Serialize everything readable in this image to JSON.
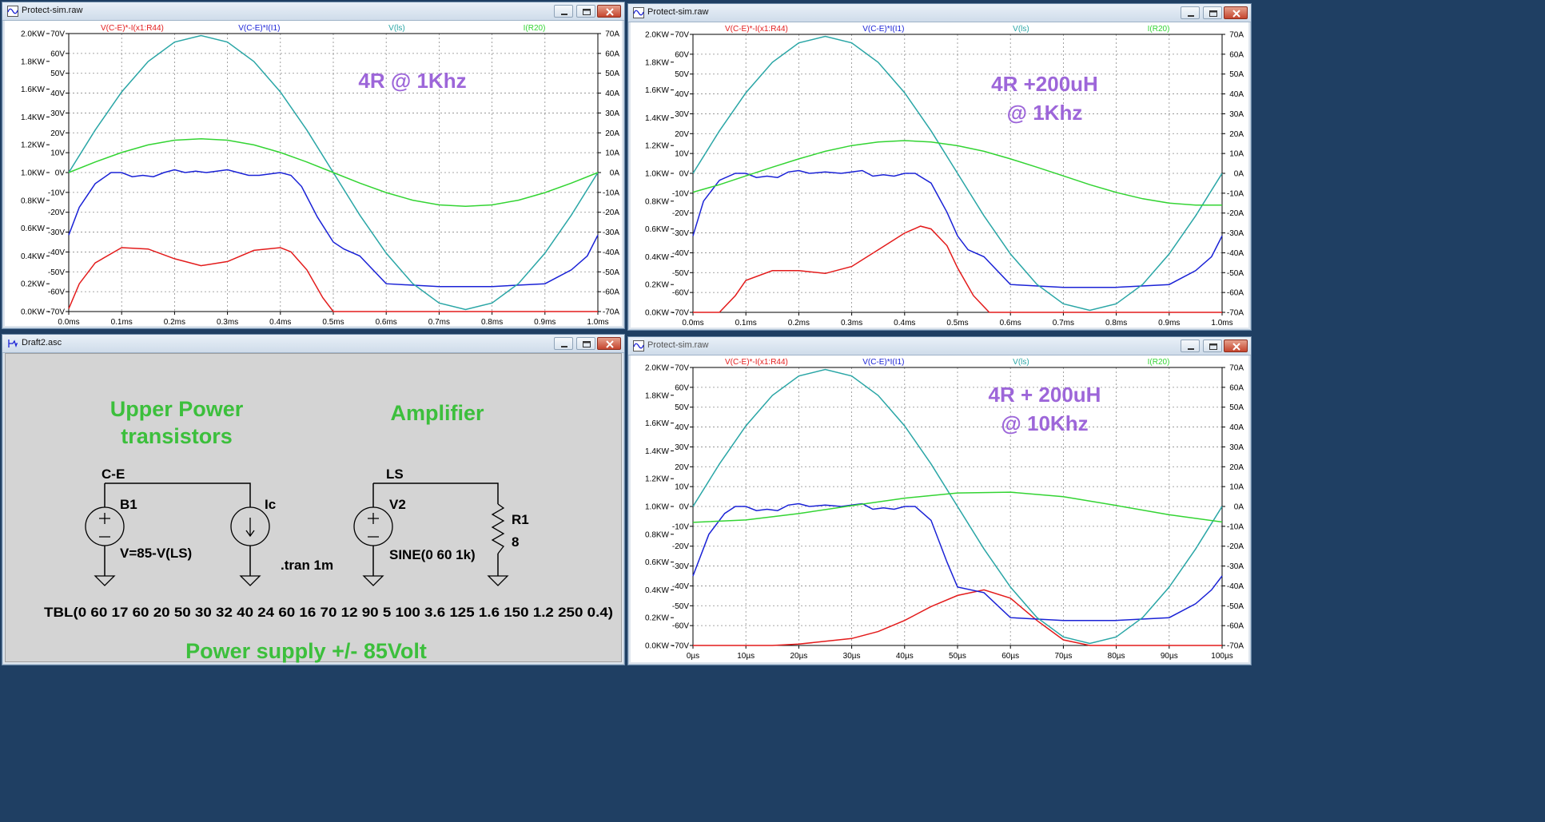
{
  "colors": {
    "red": "#e31b1b",
    "blue": "#1a22d6",
    "teal": "#2aa6a6",
    "green": "#33d433",
    "annotation": "#9d66d9",
    "schematic_green": "#3cbf3c",
    "schematic_bg": "#d4d4d4"
  },
  "icons": {
    "plot_window": "waveform-icon",
    "schematic_window": "schematic-icon",
    "minimize": "minimize-icon",
    "maximize": "maximize-icon",
    "close": "close-icon"
  },
  "plots": [
    {
      "window_title": "Protect-sim.raw",
      "annotation": [
        "4R @ 1Khz"
      ],
      "trace_labels": [
        "V(C-E)*-I(x1:R44)",
        "V(C-E)*I(I1)",
        "V(ls)",
        "I(R20)"
      ],
      "left_ticks": [
        "2.0KW",
        "1.8KW",
        "1.6KW",
        "1.4KW",
        "1.2KW",
        "1.0KW",
        "0.8KW",
        "0.6KW",
        "0.4KW",
        "0.2KW",
        "0.0KW"
      ],
      "mid_ticks": [
        "70V",
        "60V",
        "50V",
        "40V",
        "30V",
        "20V",
        "10V",
        "0V",
        "-10V",
        "-20V",
        "-30V",
        "-40V",
        "-50V",
        "-60V",
        "-70V"
      ],
      "right_ticks": [
        "70A",
        "60A",
        "50A",
        "40A",
        "30A",
        "20A",
        "10A",
        "0A",
        "-10A",
        "-20A",
        "-30A",
        "-40A",
        "-50A",
        "-60A",
        "-70A"
      ],
      "x_ticks": [
        "0.0ms",
        "0.1ms",
        "0.2ms",
        "0.3ms",
        "0.4ms",
        "0.5ms",
        "0.6ms",
        "0.7ms",
        "0.8ms",
        "0.9ms",
        "1.0ms"
      ]
    },
    {
      "window_title": "Protect-sim.raw",
      "annotation": [
        "4R +200uH",
        "@ 1Khz"
      ],
      "trace_labels": [
        "V(C-E)*-I(x1:R44)",
        "V(C-E)*I(I1)",
        "V(ls)",
        "I(R20)"
      ],
      "left_ticks": [
        "2.0KW",
        "1.8KW",
        "1.6KW",
        "1.4KW",
        "1.2KW",
        "1.0KW",
        "0.8KW",
        "0.6KW",
        "0.4KW",
        "0.2KW",
        "0.0KW"
      ],
      "mid_ticks": [
        "70V",
        "60V",
        "50V",
        "40V",
        "30V",
        "20V",
        "10V",
        "0V",
        "-10V",
        "-20V",
        "-30V",
        "-40V",
        "-50V",
        "-60V",
        "-70V"
      ],
      "right_ticks": [
        "70A",
        "60A",
        "50A",
        "40A",
        "30A",
        "20A",
        "10A",
        "0A",
        "-10A",
        "-20A",
        "-30A",
        "-40A",
        "-50A",
        "-60A",
        "-70A"
      ],
      "x_ticks": [
        "0.0ms",
        "0.1ms",
        "0.2ms",
        "0.3ms",
        "0.4ms",
        "0.5ms",
        "0.6ms",
        "0.7ms",
        "0.8ms",
        "0.9ms",
        "1.0ms"
      ]
    },
    {
      "window_title": "Protect-sim.raw",
      "annotation": [
        "4R + 200uH",
        "@ 10Khz"
      ],
      "trace_labels": [
        "V(C-E)*-I(x1:R44)",
        "V(C-E)*I(I1)",
        "V(ls)",
        "I(R20)"
      ],
      "left_ticks": [
        "2.0KW",
        "1.8KW",
        "1.6KW",
        "1.4KW",
        "1.2KW",
        "1.0KW",
        "0.8KW",
        "0.6KW",
        "0.4KW",
        "0.2KW",
        "0.0KW"
      ],
      "mid_ticks": [
        "70V",
        "60V",
        "50V",
        "40V",
        "30V",
        "20V",
        "10V",
        "0V",
        "-10V",
        "-20V",
        "-30V",
        "-40V",
        "-50V",
        "-60V",
        "-70V"
      ],
      "right_ticks": [
        "70A",
        "60A",
        "50A",
        "40A",
        "30A",
        "20A",
        "10A",
        "0A",
        "-10A",
        "-20A",
        "-30A",
        "-40A",
        "-50A",
        "-60A",
        "-70A"
      ],
      "x_ticks": [
        "0µs",
        "10µs",
        "20µs",
        "30µs",
        "40µs",
        "50µs",
        "60µs",
        "70µs",
        "80µs",
        "90µs",
        "100µs"
      ]
    }
  ],
  "schematic": {
    "window_title": "Draft2.asc",
    "heading_upper": [
      "Upper Power",
      "transistors"
    ],
    "heading_amp": "Amplifier",
    "net_ce": "C-E",
    "net_ls": "LS",
    "b1_name": "B1",
    "b1_value": "V=85-V(LS)",
    "ic_name": "Ic",
    "tran": ".tran 1m",
    "v2_name": "V2",
    "v2_value": "SINE(0 60 1k)",
    "r1_name": "R1",
    "r1_value": "8",
    "tbl": "TBL(0 60 17 60 20 50 30 32 40 24 60 16 70 12 90 5 100 3.6 125 1.6 150 1.2 250 0.4)",
    "footer": "Power supply +/- 85Volt"
  },
  "chart_data": [
    {
      "type": "line",
      "x_unit": "ms",
      "xlim": [
        0,
        1
      ],
      "axes": {
        "power_kw": [
          0,
          2
        ],
        "voltage_v": [
          -70,
          70
        ],
        "current_a": [
          -70,
          70
        ]
      },
      "grid": true,
      "series": [
        {
          "name": "V(C-E)*-I(x1:R44)",
          "axis": "power_kw",
          "color": "red",
          "x": [
            0,
            0.02,
            0.05,
            0.1,
            0.15,
            0.2,
            0.25,
            0.3,
            0.35,
            0.4,
            0.42,
            0.45,
            0.48,
            0.5,
            0.52,
            0.6,
            0.7,
            0.8,
            0.9,
            1.0
          ],
          "y": [
            0.02,
            0.2,
            0.35,
            0.46,
            0.45,
            0.38,
            0.33,
            0.36,
            0.44,
            0.46,
            0.43,
            0.3,
            0.1,
            0.0,
            0.0,
            0.0,
            0.0,
            0.0,
            0.0,
            0.0
          ]
        },
        {
          "name": "V(C-E)*I(I1)",
          "axis": "power_kw",
          "color": "blue",
          "x": [
            0,
            0.02,
            0.05,
            0.08,
            0.1,
            0.12,
            0.14,
            0.16,
            0.18,
            0.2,
            0.22,
            0.24,
            0.26,
            0.28,
            0.3,
            0.32,
            0.34,
            0.36,
            0.38,
            0.4,
            0.42,
            0.44,
            0.47,
            0.5,
            0.52,
            0.55,
            0.6,
            0.7,
            0.8,
            0.9,
            0.95,
            0.98,
            1.0
          ],
          "y": [
            0.55,
            0.75,
            0.92,
            1.0,
            1.0,
            0.97,
            0.98,
            0.97,
            1.0,
            1.02,
            1.0,
            1.01,
            1.0,
            1.01,
            1.02,
            1.0,
            0.98,
            0.98,
            0.99,
            1.0,
            0.98,
            0.9,
            0.68,
            0.5,
            0.45,
            0.4,
            0.2,
            0.18,
            0.18,
            0.2,
            0.3,
            0.4,
            0.55
          ]
        },
        {
          "name": "V(ls)",
          "axis": "voltage_v",
          "color": "teal",
          "x": [
            0,
            0.05,
            0.1,
            0.15,
            0.2,
            0.25,
            0.3,
            0.35,
            0.4,
            0.45,
            0.5,
            0.55,
            0.6,
            0.65,
            0.7,
            0.75,
            0.8,
            0.85,
            0.9,
            0.95,
            1.0
          ],
          "y": [
            0,
            21.4,
            40.6,
            55.9,
            65.7,
            69,
            65.7,
            55.9,
            40.6,
            21.4,
            0,
            -21.4,
            -40.6,
            -55.9,
            -65.7,
            -69,
            -65.7,
            -55.9,
            -40.6,
            -21.4,
            0
          ]
        },
        {
          "name": "I(R20)",
          "axis": "current_a",
          "color": "green",
          "x": [
            0,
            0.05,
            0.1,
            0.15,
            0.2,
            0.25,
            0.3,
            0.35,
            0.4,
            0.45,
            0.5,
            0.55,
            0.6,
            0.65,
            0.7,
            0.75,
            0.8,
            0.85,
            0.9,
            0.95,
            1.0
          ],
          "y": [
            0,
            5.3,
            10.1,
            13.9,
            16.3,
            17,
            16.3,
            13.9,
            10.1,
            5.3,
            0,
            -5.3,
            -10.1,
            -13.9,
            -16.3,
            -17,
            -16.3,
            -13.9,
            -10.1,
            -5.3,
            0
          ]
        }
      ]
    },
    {
      "type": "line",
      "x_unit": "ms",
      "xlim": [
        0,
        1
      ],
      "axes": {
        "power_kw": [
          0,
          2
        ],
        "voltage_v": [
          -70,
          70
        ],
        "current_a": [
          -70,
          70
        ]
      },
      "grid": true,
      "series": [
        {
          "name": "V(C-E)*-I(x1:R44)",
          "axis": "power_kw",
          "color": "red",
          "x": [
            0,
            0.05,
            0.08,
            0.1,
            0.15,
            0.2,
            0.25,
            0.3,
            0.35,
            0.4,
            0.43,
            0.45,
            0.48,
            0.5,
            0.53,
            0.56,
            0.6,
            0.8,
            1.0
          ],
          "y": [
            0,
            0.0,
            0.12,
            0.23,
            0.3,
            0.3,
            0.28,
            0.33,
            0.45,
            0.57,
            0.62,
            0.6,
            0.48,
            0.32,
            0.12,
            0.0,
            0.0,
            0.0,
            0.0
          ]
        },
        {
          "name": "V(C-E)*I(I1)",
          "axis": "power_kw",
          "color": "blue",
          "x": [
            0,
            0.02,
            0.05,
            0.08,
            0.1,
            0.12,
            0.14,
            0.16,
            0.18,
            0.2,
            0.22,
            0.25,
            0.28,
            0.3,
            0.32,
            0.34,
            0.36,
            0.38,
            0.4,
            0.42,
            0.45,
            0.48,
            0.5,
            0.52,
            0.55,
            0.6,
            0.7,
            0.8,
            0.9,
            0.95,
            0.98,
            1.0
          ],
          "y": [
            0.55,
            0.8,
            0.95,
            1.0,
            1.0,
            0.97,
            0.98,
            0.97,
            1.01,
            1.02,
            1.0,
            1.01,
            1.0,
            1.01,
            1.02,
            0.98,
            0.99,
            0.98,
            1.0,
            1.0,
            0.93,
            0.72,
            0.55,
            0.45,
            0.4,
            0.2,
            0.18,
            0.18,
            0.2,
            0.3,
            0.4,
            0.55
          ]
        },
        {
          "name": "V(ls)",
          "axis": "voltage_v",
          "color": "teal",
          "x": [
            0,
            0.05,
            0.1,
            0.15,
            0.2,
            0.25,
            0.3,
            0.35,
            0.4,
            0.45,
            0.5,
            0.55,
            0.6,
            0.65,
            0.7,
            0.75,
            0.8,
            0.85,
            0.9,
            0.95,
            1.0
          ],
          "y": [
            0,
            21.4,
            40.6,
            55.9,
            65.7,
            69,
            65.7,
            55.9,
            40.6,
            21.4,
            0,
            -21.4,
            -40.6,
            -55.9,
            -65.7,
            -69,
            -65.7,
            -55.9,
            -40.6,
            -21.4,
            0
          ]
        },
        {
          "name": "I(R20)",
          "axis": "current_a",
          "color": "green",
          "x": [
            0,
            0.05,
            0.1,
            0.15,
            0.2,
            0.25,
            0.3,
            0.35,
            0.4,
            0.45,
            0.5,
            0.55,
            0.6,
            0.65,
            0.7,
            0.75,
            0.8,
            0.85,
            0.9,
            0.95,
            1.0
          ],
          "y": [
            -9.5,
            -5.7,
            -1.3,
            3.1,
            7.3,
            11.1,
            14.0,
            15.8,
            16.5,
            15.8,
            13.9,
            11.1,
            7.3,
            3.1,
            -1.3,
            -5.7,
            -9.6,
            -12.8,
            -15.0,
            -16.0,
            -16.0
          ]
        }
      ]
    },
    {
      "type": "line",
      "x_unit": "µs",
      "xlim": [
        0,
        100
      ],
      "axes": {
        "power_kw": [
          0,
          2
        ],
        "voltage_v": [
          -70,
          70
        ],
        "current_a": [
          -70,
          70
        ]
      },
      "grid": true,
      "series": [
        {
          "name": "V(C-E)*-I(x1:R44)",
          "axis": "power_kw",
          "color": "red",
          "x": [
            0,
            10,
            15,
            20,
            25,
            30,
            35,
            40,
            45,
            50,
            55,
            60,
            65,
            70,
            75,
            80,
            90,
            100
          ],
          "y": [
            0,
            0,
            0,
            0.01,
            0.03,
            0.05,
            0.1,
            0.18,
            0.28,
            0.36,
            0.4,
            0.34,
            0.18,
            0.04,
            0.0,
            0.0,
            0.0,
            0.0
          ]
        },
        {
          "name": "V(C-E)*I(I1)",
          "axis": "power_kw",
          "color": "blue",
          "x": [
            0,
            3,
            6,
            8,
            10,
            12,
            14,
            16,
            18,
            20,
            22,
            25,
            28,
            30,
            32,
            34,
            36,
            38,
            40,
            42,
            45,
            48,
            50,
            55,
            60,
            70,
            80,
            90,
            95,
            98,
            100
          ],
          "y": [
            0.5,
            0.8,
            0.95,
            1.0,
            1.0,
            0.97,
            0.98,
            0.97,
            1.01,
            1.02,
            1.0,
            1.01,
            1.0,
            1.01,
            1.02,
            0.98,
            0.99,
            0.98,
            1.0,
            1.0,
            0.9,
            0.6,
            0.42,
            0.38,
            0.2,
            0.18,
            0.18,
            0.2,
            0.3,
            0.4,
            0.5
          ]
        },
        {
          "name": "V(ls)",
          "axis": "voltage_v",
          "color": "teal",
          "x": [
            0,
            5,
            10,
            15,
            20,
            25,
            30,
            35,
            40,
            45,
            50,
            55,
            60,
            65,
            70,
            75,
            80,
            85,
            90,
            95,
            100
          ],
          "y": [
            0,
            21.4,
            40.6,
            55.9,
            65.7,
            69,
            65.7,
            55.9,
            40.6,
            21.4,
            0,
            -21.4,
            -40.6,
            -55.9,
            -65.7,
            -69,
            -65.7,
            -55.9,
            -40.6,
            -21.4,
            0
          ]
        },
        {
          "name": "I(R20)",
          "axis": "current_a",
          "color": "green",
          "x": [
            0,
            10,
            20,
            30,
            40,
            50,
            60,
            70,
            80,
            90,
            100
          ],
          "y": [
            -8,
            -6.8,
            -3.6,
            0.4,
            4.2,
            6.8,
            7.2,
            4.9,
            0.5,
            -4.2,
            -7.8
          ]
        }
      ]
    }
  ]
}
